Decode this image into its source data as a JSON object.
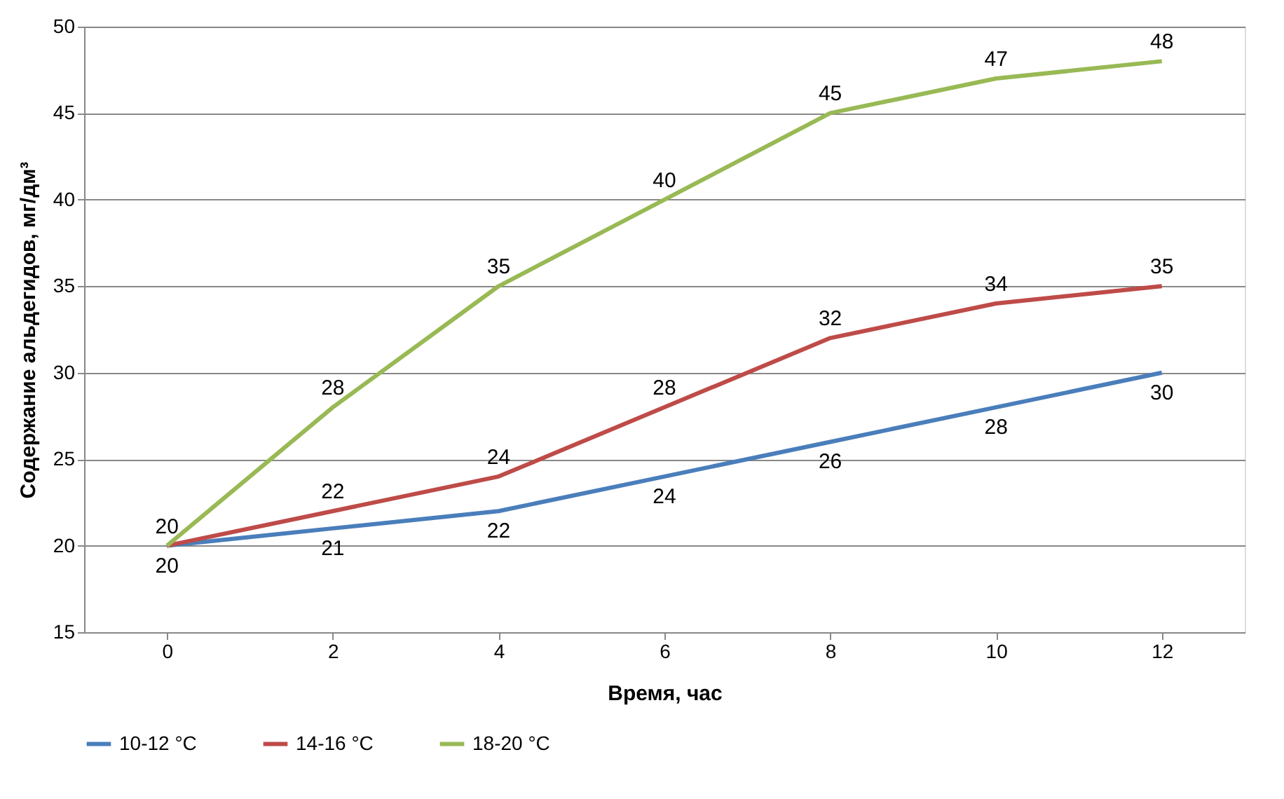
{
  "chart_data": {
    "type": "line",
    "xlabel": "Время, час",
    "ylabel": "Содержание альдегидов, мг/дм³",
    "categories": [
      "0",
      "2",
      "4",
      "6",
      "8",
      "10",
      "12"
    ],
    "series": [
      {
        "name": "10-12 °C",
        "color": "#4a7ebb",
        "values": [
          20,
          21,
          22,
          24,
          26,
          28,
          30
        ],
        "value_labels": [
          "20",
          "21",
          "22",
          "24",
          "26",
          "28",
          "30"
        ]
      },
      {
        "name": "14-16 °C",
        "color": "#be4b48",
        "values": [
          20,
          22,
          24,
          28,
          32,
          34,
          35
        ],
        "value_labels": [
          null,
          "22",
          "24",
          "28",
          "32",
          "34",
          "35"
        ]
      },
      {
        "name": "18-20 °C",
        "color": "#98b954",
        "values": [
          20,
          28,
          35,
          40,
          45,
          47,
          48
        ],
        "value_labels": [
          "20",
          "28",
          "35",
          "40",
          "45",
          "47",
          "48"
        ]
      }
    ],
    "ylim": [
      15,
      50
    ],
    "yticks": [
      15,
      20,
      25,
      30,
      35,
      40,
      45,
      50
    ],
    "grid": "y",
    "legend": "bottom",
    "marker": "none",
    "line_style": "solid"
  }
}
